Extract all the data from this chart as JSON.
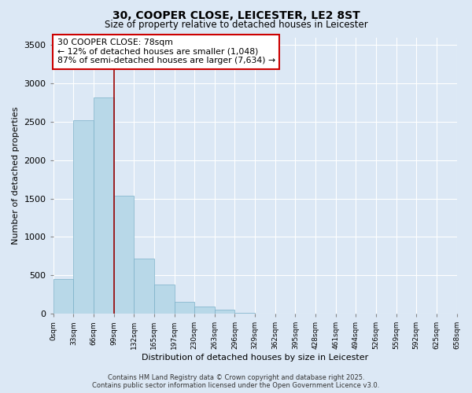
{
  "title_line1": "30, COOPER CLOSE, LEICESTER, LE2 8ST",
  "title_line2": "Size of property relative to detached houses in Leicester",
  "xlabel": "Distribution of detached houses by size in Leicester",
  "ylabel": "Number of detached properties",
  "bar_color": "#b8d8e8",
  "bar_edge_color": "#7ab0c8",
  "background_color": "#dce8f5",
  "grid_color": "#ffffff",
  "vline_color": "#990000",
  "annotation_text": "30 COOPER CLOSE: 78sqm\n← 12% of detached houses are smaller (1,048)\n87% of semi-detached houses are larger (7,634) →",
  "annotation_box_color": "#ffffff",
  "annotation_box_edge": "#cc0000",
  "footer_line1": "Contains HM Land Registry data © Crown copyright and database right 2025.",
  "footer_line2": "Contains public sector information licensed under the Open Government Licence v3.0.",
  "bins": [
    "0sqm",
    "33sqm",
    "66sqm",
    "99sqm",
    "132sqm",
    "165sqm",
    "197sqm",
    "230sqm",
    "263sqm",
    "296sqm",
    "329sqm",
    "362sqm",
    "395sqm",
    "428sqm",
    "461sqm",
    "494sqm",
    "526sqm",
    "559sqm",
    "592sqm",
    "625sqm",
    "658sqm"
  ],
  "values": [
    450,
    2520,
    2820,
    1540,
    720,
    380,
    150,
    90,
    55,
    10,
    0,
    0,
    0,
    0,
    0,
    0,
    0,
    0,
    0,
    0
  ],
  "ylim": [
    0,
    3600
  ],
  "yticks": [
    0,
    500,
    1000,
    1500,
    2000,
    2500,
    3000,
    3500
  ],
  "vline_bin_index": 2
}
